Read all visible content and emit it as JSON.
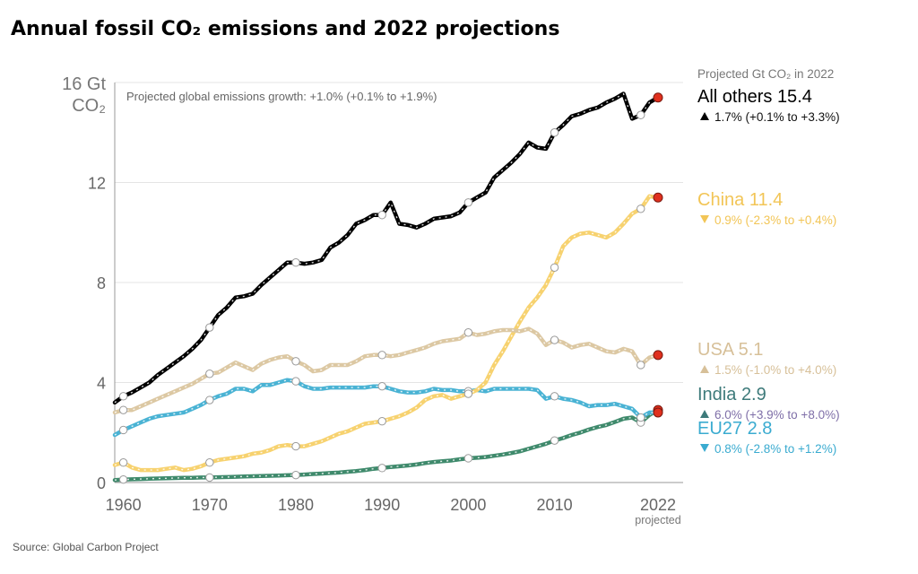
{
  "chart_data": {
    "type": "line",
    "title": "Annual fossil CO₂ emissions and 2022 projections",
    "y_unit_top": "16 Gt",
    "y_unit_bottom": "CO₂",
    "annotation": "Projected global emissions growth: +1.0% (+0.1% to +1.9%)",
    "legend_heading": "Projected Gt CO₂ in 2022",
    "source": "Source: Global Carbon Project",
    "projected_label": "projected",
    "ylim": [
      0,
      16
    ],
    "xlim": [
      1959,
      2022
    ],
    "yticks": [
      0,
      4,
      8,
      12
    ],
    "xticks": [
      1960,
      1970,
      1980,
      1990,
      2000,
      2010,
      2022
    ],
    "grid": true,
    "x": [
      1959,
      1960,
      1961,
      1962,
      1963,
      1964,
      1965,
      1966,
      1967,
      1968,
      1969,
      1970,
      1971,
      1972,
      1973,
      1974,
      1975,
      1976,
      1977,
      1978,
      1979,
      1980,
      1981,
      1982,
      1983,
      1984,
      1985,
      1986,
      1987,
      1988,
      1989,
      1990,
      1991,
      1992,
      1993,
      1994,
      1995,
      1996,
      1997,
      1998,
      1999,
      2000,
      2001,
      2002,
      2003,
      2004,
      2005,
      2006,
      2007,
      2008,
      2009,
      2010,
      2011,
      2012,
      2013,
      2014,
      2015,
      2016,
      2017,
      2018,
      2019,
      2020,
      2021,
      2022
    ],
    "series": [
      {
        "name": "All others",
        "value_2022": "15.4",
        "growth": "1.7% (+0.1% to +3.3%)",
        "direction": "up",
        "color": "#000000",
        "label_color": "#000000",
        "values": [
          3.2,
          3.45,
          3.6,
          3.8,
          4.0,
          4.3,
          4.55,
          4.8,
          5.05,
          5.35,
          5.7,
          6.2,
          6.7,
          7.0,
          7.4,
          7.45,
          7.55,
          7.9,
          8.2,
          8.5,
          8.8,
          8.8,
          8.75,
          8.8,
          8.9,
          9.4,
          9.6,
          9.9,
          10.35,
          10.5,
          10.7,
          10.7,
          11.2,
          10.35,
          10.3,
          10.2,
          10.35,
          10.55,
          10.6,
          10.65,
          10.8,
          11.2,
          11.4,
          11.6,
          12.2,
          12.5,
          12.8,
          13.15,
          13.6,
          13.4,
          13.35,
          14.0,
          14.3,
          14.65,
          14.75,
          14.9,
          15.0,
          15.2,
          15.35,
          15.55,
          14.55,
          14.7,
          15.2,
          15.4
        ]
      },
      {
        "name": "China",
        "value_2022": "11.4",
        "growth": "0.9% (-2.3% to +0.4%)",
        "direction": "down",
        "color": "#f7d26f",
        "label_color": "#f2c556",
        "values": [
          0.7,
          0.8,
          0.6,
          0.5,
          0.5,
          0.5,
          0.55,
          0.6,
          0.5,
          0.55,
          0.65,
          0.8,
          0.9,
          0.95,
          1.0,
          1.05,
          1.15,
          1.2,
          1.3,
          1.45,
          1.5,
          1.45,
          1.45,
          1.55,
          1.65,
          1.8,
          1.95,
          2.05,
          2.2,
          2.35,
          2.4,
          2.45,
          2.55,
          2.65,
          2.8,
          3.0,
          3.3,
          3.45,
          3.5,
          3.35,
          3.45,
          3.55,
          3.7,
          4.0,
          4.7,
          5.25,
          5.85,
          6.45,
          7.0,
          7.4,
          7.9,
          8.6,
          9.45,
          9.8,
          9.95,
          10.0,
          9.9,
          9.8,
          10.0,
          10.35,
          10.75,
          10.95,
          11.45,
          11.4
        ]
      },
      {
        "name": "USA",
        "value_2022": "5.1",
        "growth": "1.5% (-1.0% to +4.0%)",
        "direction": "up",
        "color": "#dcc8a3",
        "label_color": "#d7c099",
        "values": [
          2.8,
          2.9,
          2.9,
          3.05,
          3.2,
          3.35,
          3.5,
          3.65,
          3.8,
          3.95,
          4.15,
          4.35,
          4.4,
          4.6,
          4.8,
          4.65,
          4.5,
          4.75,
          4.9,
          5.0,
          5.05,
          4.85,
          4.7,
          4.45,
          4.5,
          4.7,
          4.7,
          4.7,
          4.85,
          5.05,
          5.1,
          5.1,
          5.05,
          5.1,
          5.2,
          5.3,
          5.4,
          5.55,
          5.65,
          5.7,
          5.75,
          6.0,
          5.9,
          5.95,
          6.05,
          6.1,
          6.1,
          6.05,
          6.15,
          5.95,
          5.5,
          5.7,
          5.6,
          5.4,
          5.5,
          5.55,
          5.4,
          5.25,
          5.2,
          5.35,
          5.25,
          4.7,
          5.0,
          5.1
        ]
      },
      {
        "name": "EU27",
        "value_2022": "2.8",
        "growth": "0.8% (-2.8% to +1.2%)",
        "direction": "down",
        "color": "#4ab3d4",
        "label_color": "#3aabd0",
        "values": [
          1.9,
          2.1,
          2.25,
          2.4,
          2.55,
          2.65,
          2.7,
          2.75,
          2.8,
          2.95,
          3.1,
          3.3,
          3.45,
          3.55,
          3.75,
          3.75,
          3.65,
          3.9,
          3.9,
          4.0,
          4.1,
          4.05,
          3.85,
          3.75,
          3.75,
          3.8,
          3.8,
          3.8,
          3.8,
          3.8,
          3.85,
          3.85,
          3.75,
          3.65,
          3.6,
          3.6,
          3.65,
          3.75,
          3.7,
          3.7,
          3.65,
          3.65,
          3.7,
          3.65,
          3.75,
          3.75,
          3.75,
          3.75,
          3.75,
          3.7,
          3.35,
          3.45,
          3.35,
          3.3,
          3.2,
          3.05,
          3.1,
          3.1,
          3.15,
          3.05,
          2.95,
          2.6,
          2.8,
          2.8
        ]
      },
      {
        "name": "India",
        "value_2022": "2.9",
        "growth": "6.0% (+3.9% to +8.0%)",
        "direction": "up",
        "color": "#3f8a6c",
        "label_color": "#3d7a7a",
        "values": [
          0.1,
          0.12,
          0.13,
          0.14,
          0.15,
          0.16,
          0.17,
          0.18,
          0.19,
          0.19,
          0.2,
          0.2,
          0.21,
          0.22,
          0.23,
          0.24,
          0.25,
          0.26,
          0.27,
          0.28,
          0.29,
          0.3,
          0.32,
          0.34,
          0.36,
          0.38,
          0.4,
          0.43,
          0.46,
          0.5,
          0.55,
          0.58,
          0.62,
          0.65,
          0.68,
          0.72,
          0.78,
          0.82,
          0.85,
          0.88,
          0.93,
          0.97,
          0.99,
          1.02,
          1.07,
          1.12,
          1.18,
          1.25,
          1.35,
          1.45,
          1.55,
          1.68,
          1.78,
          1.9,
          2.0,
          2.12,
          2.22,
          2.3,
          2.42,
          2.55,
          2.6,
          2.4,
          2.7,
          2.9
        ]
      }
    ]
  }
}
